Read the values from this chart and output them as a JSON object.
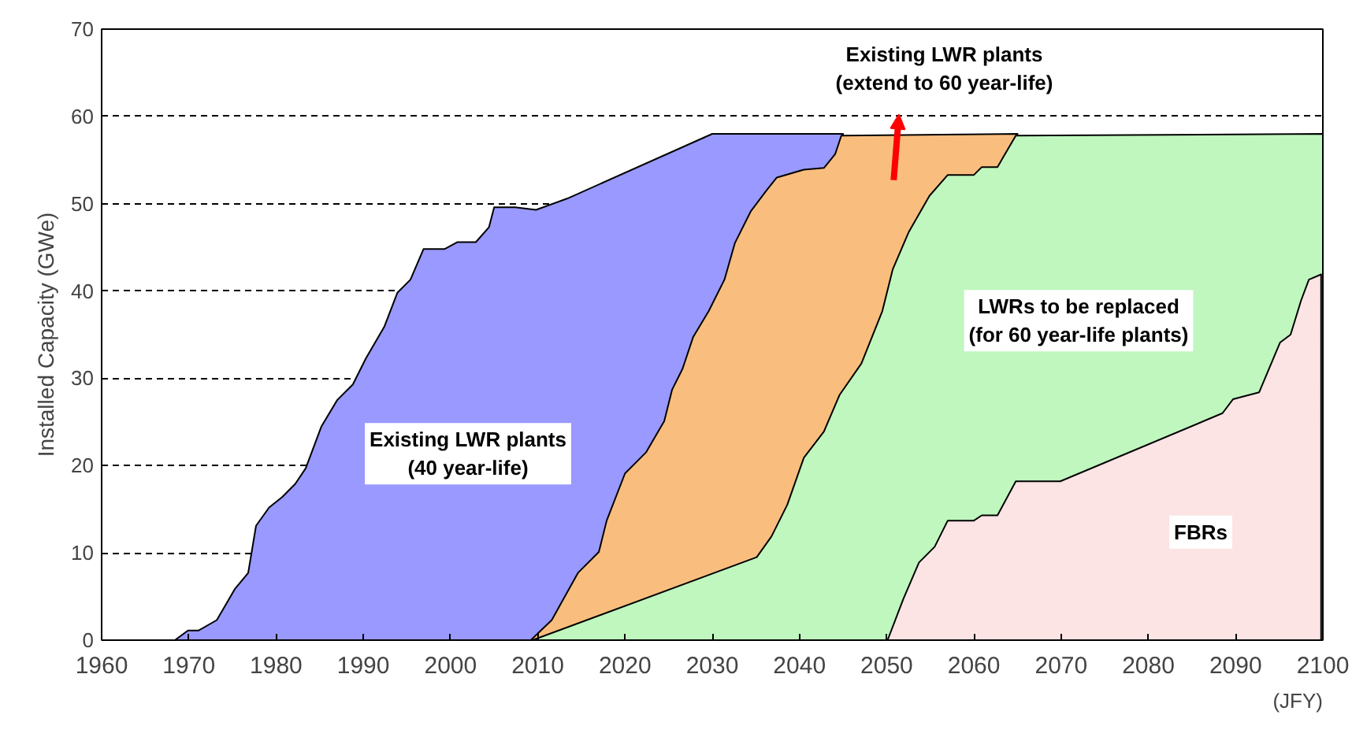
{
  "chart_data": {
    "type": "area",
    "xlabel": "(JFY)",
    "ylabel": "Installed Capacity (GWe)",
    "xlim": [
      1960,
      2100
    ],
    "ylim": [
      0,
      70
    ],
    "xticks": [
      1960,
      1970,
      1980,
      1990,
      2000,
      2010,
      2020,
      2030,
      2040,
      2050,
      2060,
      2070,
      2080,
      2090,
      2100
    ],
    "yticks": [
      0,
      10,
      20,
      30,
      40,
      50,
      60,
      70
    ],
    "grid": "y",
    "series": [
      {
        "color": "#9999ff",
        "x": [
          1968.4,
          1969.9,
          1971.1,
          1973.2,
          1975.3,
          1976.8,
          1977.7,
          1979.2,
          1980.7,
          1982.2,
          1983.4,
          1985.2,
          1987,
          1988.8,
          1990.3,
          1992.4,
          1993.9,
          1995.4,
          1996.9,
          1999.3,
          2000.8,
          2002.9,
          2004.4,
          2005,
          2007.4,
          2009.8,
          2013.4,
          2030,
          2045
        ],
        "values": [
          0,
          1.1,
          1.1,
          2.3,
          5.9,
          7.7,
          13.1,
          15.2,
          16.4,
          17.9,
          19.7,
          24.5,
          27.5,
          29.3,
          32.3,
          35.9,
          39.8,
          41.3,
          44.8,
          44.8,
          45.6,
          45.6,
          47.3,
          49.6,
          49.6,
          49.3,
          50.6,
          58,
          58
        ]
      },
      {
        "color": "#f9be7e",
        "x": [
          2009.2,
          2011.6,
          2014.6,
          2017,
          2017.9,
          2020,
          2022.4,
          2024.5,
          2025.4,
          2026.6,
          2027.8,
          2029.6,
          2031.4,
          2032.6,
          2034.4,
          2036.2,
          2037.4,
          2040.5,
          2042.8,
          2044.1,
          2044.8,
          2065
        ],
        "values": [
          0,
          2.3,
          7.7,
          10.1,
          13.7,
          19.1,
          21.5,
          25.1,
          28.7,
          31.1,
          34.7,
          37.7,
          41.3,
          45.5,
          49.1,
          51.5,
          53,
          53.9,
          54.1,
          55.7,
          57.8,
          58
        ]
      },
      {
        "color": "#bff7bf",
        "x": [
          2009.4,
          2035.1,
          2036.8,
          2038.6,
          2040.5,
          2042.8,
          2044.6,
          2047.1,
          2049.5,
          2050.7,
          2052.5,
          2054.9,
          2057,
          2060,
          2060.9,
          2062.7,
          2064.8,
          2100
        ],
        "values": [
          0,
          9.5,
          11.9,
          15.5,
          20.9,
          23.9,
          28.1,
          31.7,
          37.7,
          42.5,
          46.7,
          50.9,
          53.3,
          53.3,
          54.2,
          54.2,
          57.8,
          58
        ]
      },
      {
        "color": "#fce4e4",
        "x": [
          2050.1,
          2051.9,
          2053.7,
          2055.5,
          2057,
          2060,
          2060.9,
          2062.7,
          2064.8,
          2069.9,
          2088.5,
          2089.7,
          2092.7,
          2095.1,
          2096.3,
          2097.5,
          2098.4,
          2099.8
        ],
        "values": [
          0,
          4.7,
          8.9,
          10.7,
          13.7,
          13.7,
          14.3,
          14.3,
          18.2,
          18.2,
          26,
          27.6,
          28.4,
          34.1,
          35,
          38.9,
          41.3,
          41.9
        ]
      }
    ],
    "annotations": [
      "Existing LWR plants\n(extend to 60 year-life)",
      "Existing LWR plants\n(40 year-life)",
      "LWRs to be replaced\n(for 60 year-life plants)",
      "FBRs"
    ]
  }
}
